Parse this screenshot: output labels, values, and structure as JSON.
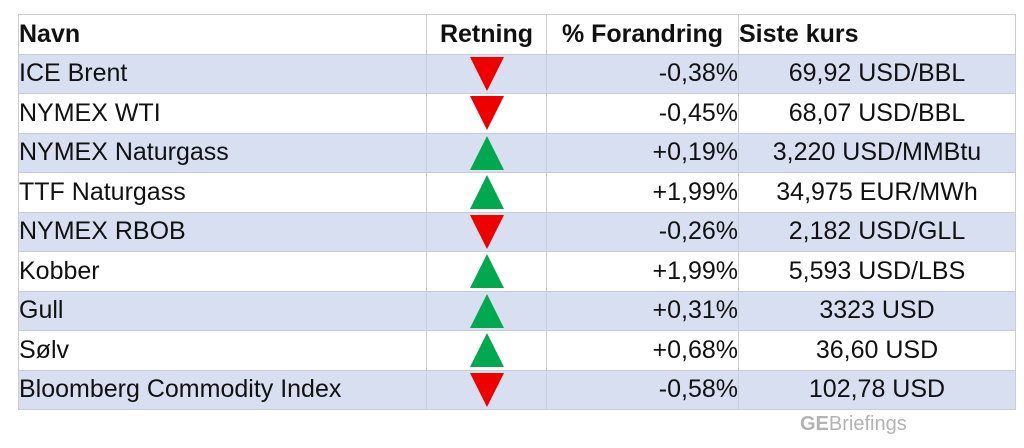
{
  "table": {
    "headers": {
      "name": "Navn",
      "direction": "Retning",
      "change": "% Forandring",
      "price": "Siste kurs"
    },
    "rows": [
      {
        "name": "ICE Brent",
        "direction": "down",
        "change": "-0,38%",
        "price": "69,92 USD/BBL"
      },
      {
        "name": "NYMEX WTI",
        "direction": "down",
        "change": "-0,45%",
        "price": "68,07 USD/BBL"
      },
      {
        "name": "NYMEX Naturgass",
        "direction": "up",
        "change": "+0,19%",
        "price": "3,220 USD/MMBtu"
      },
      {
        "name": "TTF Naturgass",
        "direction": "up",
        "change": "+1,99%",
        "price": "34,975 EUR/MWh"
      },
      {
        "name": "NYMEX RBOB",
        "direction": "down",
        "change": "-0,26%",
        "price": "2,182 USD/GLL"
      },
      {
        "name": "Kobber",
        "direction": "up",
        "change": "+1,99%",
        "price": "5,593 USD/LBS"
      },
      {
        "name": "Gull",
        "direction": "up",
        "change": "+0,31%",
        "price": "3323 USD"
      },
      {
        "name": "Sølv",
        "direction": "up",
        "change": "+0,68%",
        "price": "36,60 USD"
      },
      {
        "name": "Bloomberg Commodity Index",
        "direction": "down",
        "change": "-0,58%",
        "price": "102,78 USD"
      }
    ]
  },
  "colors": {
    "up": "#00a84f",
    "down": "#ee0000",
    "row_shade": "#d8dff0"
  },
  "icons": {
    "up": "triangle-up-icon",
    "down": "triangle-down-icon"
  },
  "branding": {
    "prefix": "GE",
    "suffix": "Briefings"
  }
}
